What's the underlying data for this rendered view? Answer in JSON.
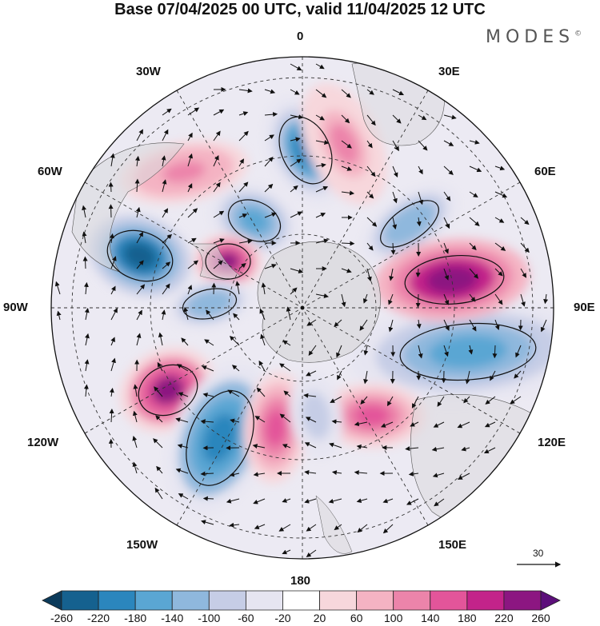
{
  "title": "Base 07/04/2025 00 UTC, valid 11/04/2025 12 UTC",
  "brand": "MODES",
  "brand_mark": "©",
  "longitude_labels": {
    "lon_0": "0",
    "lon_30e": "30E",
    "lon_60e": "60E",
    "lon_90e": "90E",
    "lon_120e": "120E",
    "lon_150e": "150E",
    "lon_180": "180",
    "lon_150w": "150W",
    "lon_120w": "120W",
    "lon_90w": "90W",
    "lon_60w": "60W",
    "lon_30w": "30W"
  },
  "reference_vector": "30",
  "colorbar": {
    "labels": [
      "-260",
      "-220",
      "-180",
      "-140",
      "-100",
      "-60",
      "-20",
      "20",
      "60",
      "100",
      "140",
      "180",
      "220",
      "260"
    ],
    "colors": [
      "#0b3a5a",
      "#15618f",
      "#2b86bd",
      "#5aa6d3",
      "#8fb8dd",
      "#c6cde6",
      "#e6e5f1",
      "#ffffff",
      "#f7d7dc",
      "#f4b3c3",
      "#ec84aa",
      "#e3559a",
      "#c3238a",
      "#8c1681",
      "#5c0f7a"
    ]
  },
  "anomalies": [
    {
      "name": "blob-neg-1",
      "value": -200
    },
    {
      "name": "blob-neg-2",
      "value": -180
    },
    {
      "name": "blob-neg-3",
      "value": -260
    },
    {
      "name": "blob-pos-1",
      "value": 220
    },
    {
      "name": "blob-neg-4",
      "value": -140
    },
    {
      "name": "blob-neg-5",
      "value": -180
    },
    {
      "name": "blob-pos-2",
      "value": 240
    },
    {
      "name": "blob-neg-6",
      "value": -140
    },
    {
      "name": "blob-pos-3",
      "value": 220
    },
    {
      "name": "blob-neg-7",
      "value": -220
    },
    {
      "name": "blob-pos-4",
      "value": 140
    },
    {
      "name": "blob-pos-5",
      "value": 120
    },
    {
      "name": "blob-pos-6",
      "value": 140
    },
    {
      "name": "blob-neg-8",
      "value": -100
    },
    {
      "name": "blob-pos-7",
      "value": 100
    }
  ]
}
